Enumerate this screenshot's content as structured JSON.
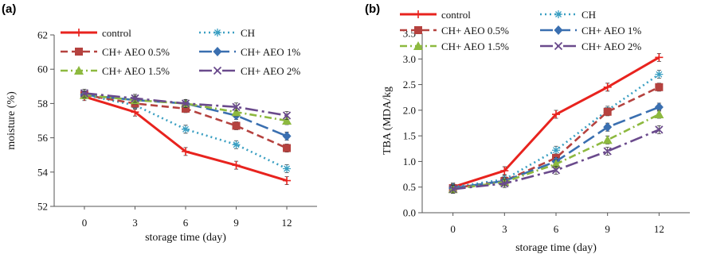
{
  "chart_data": [
    {
      "panel": "(a)",
      "type": "line",
      "xlabel": "storage time  (day)",
      "ylabel": "moisture (%)",
      "x": [
        0,
        3,
        6,
        9,
        12
      ],
      "ylim": [
        52,
        62
      ],
      "yticks": [
        52,
        54,
        56,
        58,
        60,
        62
      ],
      "grid": false,
      "legend_position": "top",
      "series": [
        {
          "name": "control",
          "values": [
            58.4,
            57.5,
            55.2,
            54.4,
            53.5
          ],
          "color": "#e8231e",
          "dash": "solid",
          "marker": "plus"
        },
        {
          "name": "CH",
          "values": [
            58.5,
            57.9,
            56.5,
            55.6,
            54.2
          ],
          "color": "#3a9fc2",
          "dash": "dot",
          "marker": "asterisk"
        },
        {
          "name": "CH+ AEO 0.5%",
          "values": [
            58.5,
            58.0,
            57.7,
            56.7,
            55.4
          ],
          "color": "#b5423f",
          "dash": "dash",
          "marker": "square"
        },
        {
          "name": "CH+ AEO 1%",
          "values": [
            58.5,
            58.2,
            58.0,
            57.3,
            56.1
          ],
          "color": "#3a6fb0",
          "dash": "longdash",
          "marker": "diamond"
        },
        {
          "name": "CH+ AEO 1.5%",
          "values": [
            58.5,
            58.2,
            58.0,
            57.5,
            57.0
          ],
          "color": "#8db93f",
          "dash": "dashdot",
          "marker": "triangle"
        },
        {
          "name": "CH+ AEO 2%",
          "values": [
            58.6,
            58.3,
            58.0,
            57.8,
            57.3
          ],
          "color": "#6a4a8c",
          "dash": "longdashdot",
          "marker": "x"
        }
      ]
    },
    {
      "panel": "(b)",
      "type": "line",
      "xlabel": "storage time  (day)",
      "ylabel": "TBA (MDA/kg",
      "x": [
        0,
        3,
        6,
        9,
        12
      ],
      "ylim": [
        0,
        3.5
      ],
      "yticks": [
        0.0,
        0.5,
        1.0,
        1.5,
        2.0,
        2.5,
        3.0,
        3.5
      ],
      "grid": false,
      "legend_position": "top",
      "series": [
        {
          "name": "control",
          "values": [
            0.5,
            0.82,
            1.92,
            2.45,
            3.03
          ],
          "color": "#e8231e",
          "dash": "solid",
          "marker": "plus"
        },
        {
          "name": "CH",
          "values": [
            0.5,
            0.65,
            1.22,
            2.0,
            2.7
          ],
          "color": "#3a9fc2",
          "dash": "dot",
          "marker": "asterisk"
        },
        {
          "name": "CH+ AEO 0.5%",
          "values": [
            0.48,
            0.62,
            1.07,
            1.97,
            2.45
          ],
          "color": "#b5423f",
          "dash": "dash",
          "marker": "square"
        },
        {
          "name": "CH+ AEO 1%",
          "values": [
            0.48,
            0.62,
            1.0,
            1.67,
            2.06
          ],
          "color": "#3a6fb0",
          "dash": "longdash",
          "marker": "diamond"
        },
        {
          "name": "CH+ AEO 1.5%",
          "values": [
            0.46,
            0.6,
            0.95,
            1.42,
            1.92
          ],
          "color": "#8db93f",
          "dash": "dashdot",
          "marker": "triangle"
        },
        {
          "name": "CH+ AEO 2%",
          "values": [
            0.46,
            0.57,
            0.83,
            1.2,
            1.62
          ],
          "color": "#6a4a8c",
          "dash": "longdashdot",
          "marker": "x"
        }
      ]
    }
  ]
}
